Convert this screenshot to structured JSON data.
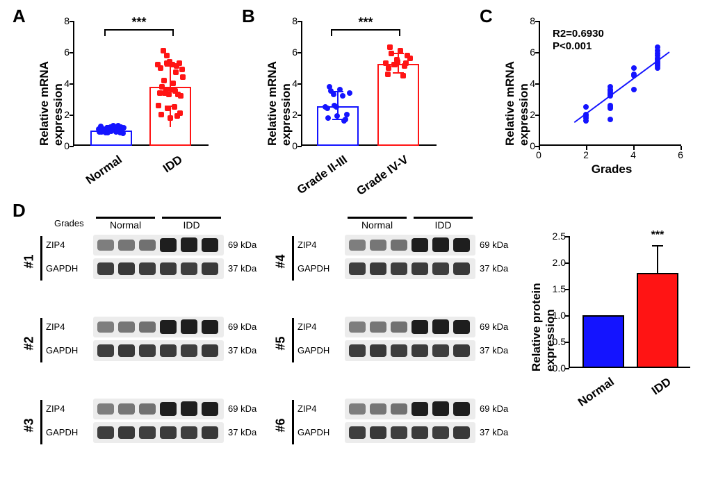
{
  "panelA": {
    "type": "bar+scatter",
    "title_letter": "A",
    "y_label": "Relative mRNA\nexpression",
    "categories": [
      "Normal",
      "IDD"
    ],
    "bar_means": [
      1.0,
      3.8
    ],
    "bar_err": [
      0.25,
      1.3
    ],
    "bar_outline_colors": [
      "#1414ff",
      "#ff1414"
    ],
    "marker_colors": [
      "#1414ff",
      "#ff1414"
    ],
    "marker_shapes": [
      "circle",
      "square"
    ],
    "ylim": [
      0,
      8
    ],
    "ytick_step": 2,
    "sig": "***",
    "sig_y": 7.0,
    "points": [
      [
        1.05,
        0.95,
        1.1,
        0.9,
        1.2,
        0.85,
        1.0,
        1.3,
        0.8,
        1.15,
        0.9,
        1.25,
        1.0,
        1.1,
        0.95,
        1.2,
        1.05,
        0.85,
        1.15,
        0.9,
        1.0,
        1.3,
        1.1,
        0.95,
        1.2,
        0.9,
        1.05,
        1.15,
        0.85,
        1.0
      ],
      [
        5.2,
        5.3,
        5.1,
        5.0,
        5.4,
        5.3,
        6.1,
        5.2,
        4.9,
        3.6,
        3.5,
        3.4,
        3.3,
        3.3,
        3.8,
        3.6,
        3.2,
        3.4,
        2.5,
        2.6,
        2.4,
        1.9,
        2.0,
        1.8,
        2.1,
        4.2,
        4.0,
        4.4,
        5.8,
        4.7
      ]
    ]
  },
  "panelB": {
    "type": "bar+scatter",
    "title_letter": "B",
    "y_label": "Relative mRNA\nexpression",
    "categories": [
      "Grade II-III",
      "Grade IV-V"
    ],
    "bar_means": [
      2.55,
      5.25
    ],
    "bar_err": [
      0.9,
      0.6
    ],
    "bar_outline_colors": [
      "#1414ff",
      "#ff1414"
    ],
    "marker_colors": [
      "#1414ff",
      "#ff1414"
    ],
    "marker_shapes": [
      "circle",
      "square"
    ],
    "ylim": [
      0,
      8
    ],
    "ytick_step": 2,
    "sig": "***",
    "sig_y": 7.0,
    "points": [
      [
        2.5,
        2.6,
        1.6,
        1.8,
        1.9,
        2.0,
        3.5,
        3.6,
        3.4,
        3.3,
        3.2,
        2.4,
        2.5,
        1.7,
        3.8
      ],
      [
        5.3,
        5.2,
        5.1,
        5.0,
        5.4,
        5.8,
        5.9,
        6.1,
        5.6,
        5.2,
        4.5,
        4.6,
        5.5,
        5.3,
        6.3
      ]
    ]
  },
  "panelC": {
    "type": "scatter+line",
    "title_letter": "C",
    "y_label": "Relative mRNA\nexpression",
    "x_label": "Grades",
    "ylim": [
      0,
      8
    ],
    "ytick_step": 2,
    "xlim": [
      0,
      6
    ],
    "xtick_step": 2,
    "marker_color": "#1414ff",
    "line_color": "#1414ff",
    "annotation_lines": [
      "R2=0.6930",
      "P<0.001"
    ],
    "points": [
      [
        2,
        1.6
      ],
      [
        2,
        1.8
      ],
      [
        2,
        2.0
      ],
      [
        2,
        2.5
      ],
      [
        2,
        1.9
      ],
      [
        3,
        2.4
      ],
      [
        3,
        2.5
      ],
      [
        3,
        2.6
      ],
      [
        3,
        3.3
      ],
      [
        3,
        3.4
      ],
      [
        3,
        3.5
      ],
      [
        3,
        3.6
      ],
      [
        3,
        3.8
      ],
      [
        3,
        1.7
      ],
      [
        3,
        3.2
      ],
      [
        4,
        4.5
      ],
      [
        4,
        4.6
      ],
      [
        4,
        5.0
      ],
      [
        4,
        3.6
      ],
      [
        5,
        5.1
      ],
      [
        5,
        5.2
      ],
      [
        5,
        5.3
      ],
      [
        5,
        5.4
      ],
      [
        5,
        5.8
      ],
      [
        5,
        5.9
      ],
      [
        5,
        6.1
      ],
      [
        5,
        5.6
      ],
      [
        5,
        5.5
      ],
      [
        5,
        6.3
      ],
      [
        5,
        5.0
      ]
    ],
    "fit_line": {
      "x1": 1.5,
      "y1": 1.5,
      "x2": 5.5,
      "y2": 6.0
    }
  },
  "panelD": {
    "title_letter": "D",
    "grades_label": "Grades",
    "group_labels": [
      "Normal",
      "IDD"
    ],
    "row_proteins": [
      "ZIP4",
      "GAPDH"
    ],
    "kda_labels": [
      "69 kDa",
      "37 kDa"
    ],
    "sample_ids": [
      "#1",
      "#2",
      "#3",
      "#4",
      "#5",
      "#6"
    ],
    "lanes_per_group": 3,
    "band_intensity": {
      "zip4_normal": [
        0.35,
        0.38,
        0.4
      ],
      "zip4_idd": [
        0.8,
        0.85,
        0.82
      ],
      "gapdh": [
        0.6,
        0.62,
        0.6,
        0.61,
        0.6,
        0.62
      ]
    },
    "quant": {
      "y_label": "Relative protein\nexpression",
      "categories": [
        "Normal",
        "IDD"
      ],
      "bar_means": [
        1.0,
        1.8
      ],
      "bar_err": [
        0.0,
        0.5
      ],
      "bar_fill_colors": [
        "#1414ff",
        "#ff1414"
      ],
      "bar_outline_colors": [
        "#000000",
        "#000000"
      ],
      "ylim": [
        0.0,
        2.5
      ],
      "ytick_step": 0.5,
      "sig": "***",
      "sig_above_idx": 1
    }
  },
  "colors": {
    "background": "#ffffff",
    "axis": "#000000",
    "blot_bg": "#ececec"
  },
  "fonts": {
    "panel_label_pt": 26,
    "axis_title_pt": 17,
    "tick_pt": 14
  }
}
